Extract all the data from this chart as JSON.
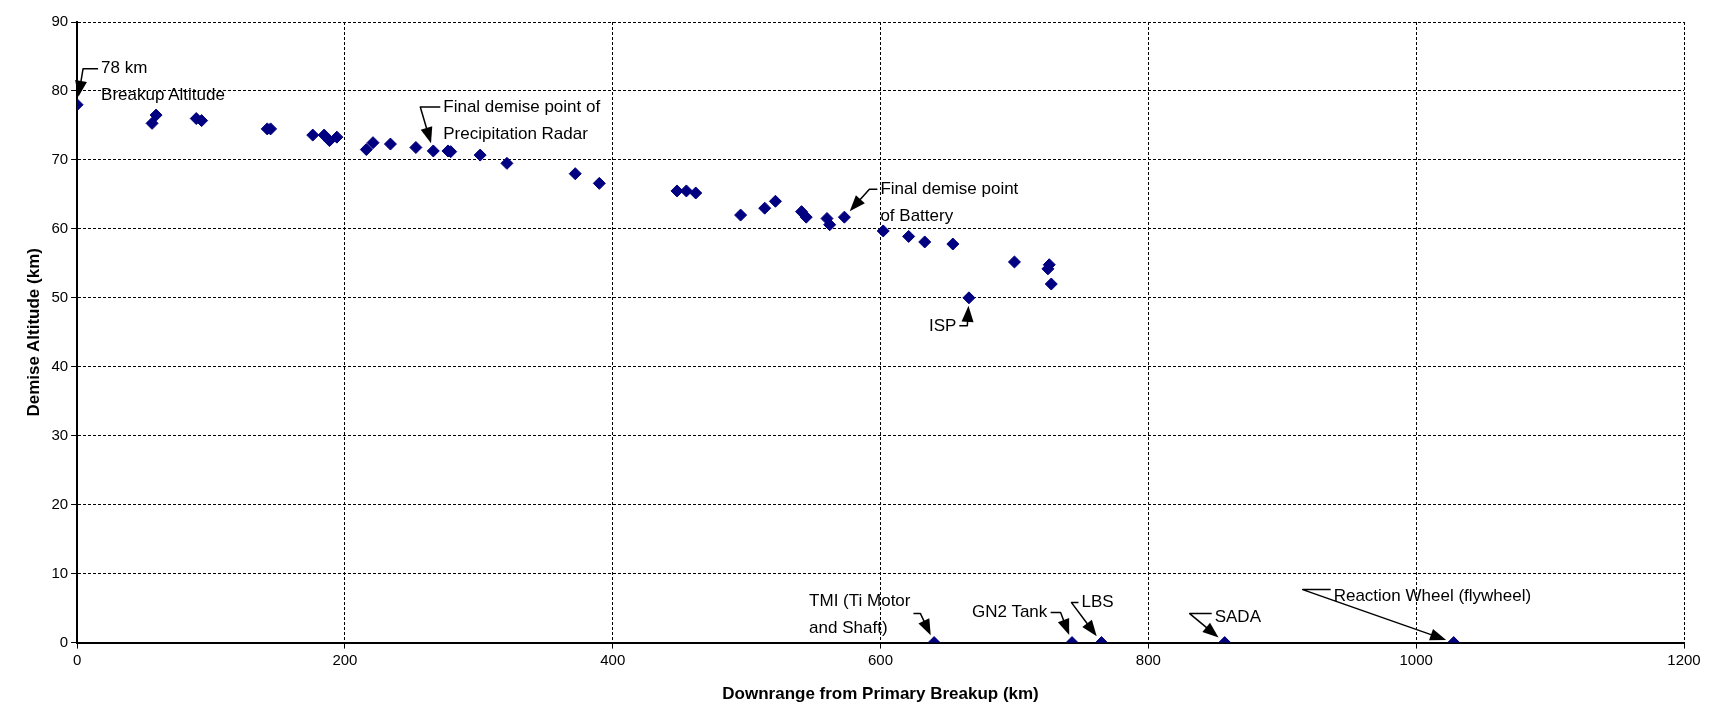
{
  "chart_data": {
    "type": "scatter",
    "xlabel": "Downrange from Primary Breakup (km)",
    "ylabel": "Demise Altitude (km)",
    "xlim": [
      0,
      1200
    ],
    "xticks": [
      0,
      200,
      400,
      600,
      800,
      1000,
      1200
    ],
    "ylim": [
      0,
      90
    ],
    "yticks": [
      0,
      10,
      20,
      30,
      40,
      50,
      60,
      70,
      80,
      90
    ],
    "grid": true,
    "marker": "diamond",
    "series": [
      {
        "color": "#000080",
        "x": [
          0,
          56,
          59,
          89,
          93,
          142,
          144.5,
          176,
          184.5,
          188.5,
          194,
          216,
          221,
          234,
          253,
          266,
          277,
          279,
          301,
          321,
          372,
          390,
          448,
          455,
          462,
          495.5,
          513.5,
          521.5,
          541,
          544.5,
          560,
          562,
          573,
          602,
          621,
          633,
          654,
          666,
          700,
          725,
          726,
          727.5,
          640,
          743,
          765,
          857,
          1028
        ],
        "values": [
          78,
          75.3,
          76.5,
          76,
          75.7,
          74.5,
          74.5,
          73.6,
          73.6,
          72.8,
          73.3,
          71.5,
          72.5,
          72.3,
          71.8,
          71.3,
          71.3,
          71.2,
          70.7,
          69.5,
          68,
          66.6,
          65.5,
          65.5,
          65.2,
          62,
          63,
          64,
          62.5,
          61.7,
          61.5,
          60.6,
          61.7,
          59.7,
          58.9,
          58.1,
          57.8,
          50,
          55.2,
          54.2,
          54.8,
          52,
          0,
          0,
          0,
          0,
          0
        ]
      }
    ],
    "annotations": [
      {
        "text": "78 km\nBreakup Altitude",
        "x": 0,
        "y": 78
      },
      {
        "text": "Final demise point of\nPrecipitation Radar",
        "x": 266,
        "y": 71.3
      },
      {
        "text": "Final demise point\nof Battery",
        "x": 573,
        "y": 61.7
      },
      {
        "text": "ISP",
        "x": 666,
        "y": 50
      },
      {
        "text": "TMI (Ti Motor\nand Shaft)",
        "x": 640,
        "y": 0
      },
      {
        "text": "GN2 Tank",
        "x": 743,
        "y": 0
      },
      {
        "text": "LBS",
        "x": 765,
        "y": 0
      },
      {
        "text": "SADA",
        "x": 857,
        "y": 0
      },
      {
        "text": "Reaction Wheel (flywheel)",
        "x": 1028,
        "y": 0
      }
    ]
  }
}
